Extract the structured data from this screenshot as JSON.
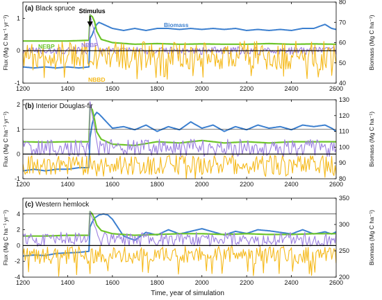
{
  "figure": {
    "xlabel": "Time, year of simulation",
    "stimulus_label": "Stimulus",
    "left_axis_label": "Flux (Mg C ha⁻¹ yr⁻¹)",
    "right_axis_label": "Biomass (Mg C ha⁻¹)"
  },
  "colors": {
    "biomass": "#3b7fcf",
    "nebp": "#6dc42a",
    "nbbp": "#9b7fe0",
    "nbbd": "#f5b91a",
    "stimulus_arrow": "#000000"
  },
  "chart_data": [
    {
      "type": "line",
      "panel": "(a)",
      "title": "Black spruce",
      "x_range": [
        1200,
        2600
      ],
      "x_ticks": [
        1200,
        1400,
        1600,
        1800,
        2000,
        2200,
        2400,
        2600
      ],
      "left_ylim": [
        -1,
        1.5
      ],
      "left_ticks": [
        -1,
        0,
        1
      ],
      "right_ylim": [
        40,
        80
      ],
      "right_ticks": [
        40,
        50,
        60,
        70,
        80
      ],
      "hlines": [
        0
      ],
      "stimulus_year": 1500,
      "series_labels": [
        {
          "text": "Biomass",
          "series": "biomass"
        },
        {
          "text": "NEBP",
          "series": "nebp"
        },
        {
          "text": "NBBP",
          "series": "nbbp"
        },
        {
          "text": "NBBD",
          "series": "nbbd"
        }
      ],
      "series": [
        {
          "key": "biomass",
          "axis": "right",
          "x": [
            1200,
            1250,
            1300,
            1350,
            1400,
            1450,
            1495,
            1500,
            1510,
            1520,
            1530,
            1540,
            1560,
            1600,
            1650,
            1700,
            1750,
            1800,
            1850,
            1900,
            1950,
            2000,
            2050,
            2100,
            2150,
            2200,
            2250,
            2300,
            2350,
            2400,
            2450,
            2500,
            2550,
            2580,
            2600
          ],
          "values": [
            48,
            47.5,
            48,
            47.5,
            48,
            47.5,
            48,
            62,
            64,
            67,
            69,
            70,
            69,
            67,
            66,
            67,
            66,
            67,
            67,
            66.5,
            67,
            66.5,
            67,
            66.5,
            67,
            66,
            66.5,
            66,
            66.5,
            66,
            67,
            67,
            69,
            67,
            66.5
          ]
        },
        {
          "key": "nebp",
          "axis": "left",
          "x": [
            1200,
            1300,
            1400,
            1495,
            1500,
            1510,
            1520,
            1530,
            1550,
            1600,
            1700,
            1800,
            1900,
            2000,
            2100,
            2200,
            2300,
            2400,
            2500,
            2600
          ],
          "values": [
            0.3,
            0.3,
            0.3,
            0.32,
            1.1,
            1.05,
            0.9,
            0.6,
            0.35,
            0.25,
            0.2,
            0.22,
            0.2,
            0.21,
            0.2,
            0.2,
            0.22,
            0.2,
            0.21,
            0.2
          ]
        },
        {
          "key": "nbbp",
          "axis": "left",
          "x_range": [
            1200,
            2600
          ],
          "step": 5,
          "baseline": 0,
          "spread": 0.12,
          "spike": {
            "x": [
              1500,
              1540
            ],
            "y": [
              1.1,
              0
            ]
          }
        },
        {
          "key": "nbbd",
          "axis": "left",
          "x_range": [
            1200,
            2600
          ],
          "step": 5,
          "baseline": -0.15,
          "spread": 0.45,
          "min": -0.9
        }
      ]
    },
    {
      "type": "line",
      "panel": "(b)",
      "title": "Interior Douglas-fir",
      "x_range": [
        1200,
        2600
      ],
      "x_ticks": [
        1200,
        1400,
        1600,
        1800,
        2000,
        2200,
        2400,
        2600
      ],
      "left_ylim": [
        -1,
        2.2
      ],
      "left_ticks": [
        -1,
        0,
        1,
        2
      ],
      "right_ylim": [
        80,
        130
      ],
      "right_ticks": [
        80,
        90,
        100,
        110,
        120,
        130
      ],
      "hlines": [
        0,
        1
      ],
      "stimulus_year": 1500,
      "series": [
        {
          "key": "biomass",
          "axis": "right",
          "x": [
            1200,
            1250,
            1300,
            1350,
            1400,
            1450,
            1495,
            1500,
            1510,
            1520,
            1530,
            1540,
            1560,
            1600,
            1650,
            1700,
            1750,
            1800,
            1850,
            1900,
            1950,
            2000,
            2050,
            2100,
            2150,
            2200,
            2250,
            2300,
            2350,
            2400,
            2450,
            2500,
            2550,
            2580,
            2600
          ],
          "values": [
            85,
            86,
            85,
            86,
            86,
            87,
            87,
            106,
            115,
            120,
            122,
            121,
            118,
            112,
            113,
            111,
            114,
            110,
            113,
            111,
            116,
            112,
            114,
            110,
            113,
            111,
            114,
            112,
            113,
            111,
            114,
            113,
            114,
            112,
            110
          ]
        },
        {
          "key": "nebp",
          "axis": "left",
          "x": [
            1200,
            1300,
            1400,
            1495,
            1500,
            1510,
            1520,
            1530,
            1550,
            1600,
            1700,
            1800,
            1900,
            2000,
            2100,
            2200,
            2300,
            2400,
            2500,
            2600
          ],
          "values": [
            0.5,
            0.48,
            0.5,
            0.5,
            1.9,
            1.8,
            1.4,
            0.9,
            0.6,
            0.4,
            0.35,
            0.5,
            0.45,
            0.55,
            0.45,
            0.5,
            0.45,
            0.5,
            0.5,
            0.5
          ]
        },
        {
          "key": "nbbp",
          "axis": "left",
          "x_range": [
            1200,
            2600
          ],
          "step": 5,
          "baseline": 0.25,
          "spread": 0.35,
          "spike": {
            "x": [
              1500,
              1540
            ],
            "y": [
              2.1,
              0
            ]
          }
        },
        {
          "key": "nbbd",
          "axis": "left",
          "x_range": [
            1200,
            2600
          ],
          "step": 5,
          "baseline": -0.45,
          "spread": 0.4,
          "min": -1.0
        }
      ]
    },
    {
      "type": "line",
      "panel": "(c)",
      "title": "Western hemlock",
      "x_range": [
        1200,
        2600
      ],
      "x_ticks": [
        1200,
        1400,
        1600,
        1800,
        2000,
        2200,
        2400,
        2600
      ],
      "left_ylim": [
        -4,
        6
      ],
      "left_ticks": [
        -4,
        -2,
        0,
        2,
        4
      ],
      "right_ylim": [
        200,
        350
      ],
      "right_ticks": [
        200,
        250,
        300,
        350
      ],
      "hlines": [
        0,
        4
      ],
      "stimulus_year": 1500,
      "series": [
        {
          "key": "biomass",
          "axis": "right",
          "x": [
            1200,
            1250,
            1300,
            1350,
            1400,
            1450,
            1495,
            1500,
            1510,
            1520,
            1540,
            1560,
            1580,
            1600,
            1650,
            1700,
            1750,
            1800,
            1850,
            1900,
            1950,
            2000,
            2050,
            2100,
            2150,
            2200,
            2250,
            2300,
            2350,
            2400,
            2450,
            2500,
            2550,
            2580,
            2600
          ],
          "values": [
            240,
            242,
            241,
            245,
            246,
            247,
            249,
            295,
            305,
            312,
            318,
            320,
            318,
            310,
            278,
            270,
            285,
            280,
            290,
            282,
            287,
            292,
            286,
            280,
            287,
            283,
            290,
            288,
            285,
            282,
            290,
            282,
            286,
            282,
            286
          ]
        },
        {
          "key": "nebp",
          "axis": "left",
          "x": [
            1200,
            1300,
            1400,
            1495,
            1500,
            1510,
            1520,
            1530,
            1550,
            1600,
            1700,
            1800,
            1900,
            2000,
            2100,
            2200,
            2300,
            2400,
            2500,
            2600
          ],
          "values": [
            1.2,
            1.2,
            1.3,
            1.3,
            4.3,
            4.0,
            3.4,
            2.6,
            1.9,
            1.5,
            1.3,
            1.4,
            1.5,
            1.5,
            1.4,
            1.5,
            1.4,
            1.4,
            1.5,
            1.5
          ]
        },
        {
          "key": "nbbp",
          "axis": "left",
          "x_range": [
            1200,
            2600
          ],
          "step": 5,
          "baseline": 0.8,
          "spread": 0.9,
          "spike": {
            "x": [
              1500,
              1545
            ],
            "y": [
              4.3,
              0.5
            ]
          }
        },
        {
          "key": "nbbd",
          "axis": "left",
          "x_range": [
            1200,
            2600
          ],
          "step": 5,
          "baseline": -1.2,
          "spread": 1.1,
          "min": -3.9
        }
      ]
    }
  ]
}
